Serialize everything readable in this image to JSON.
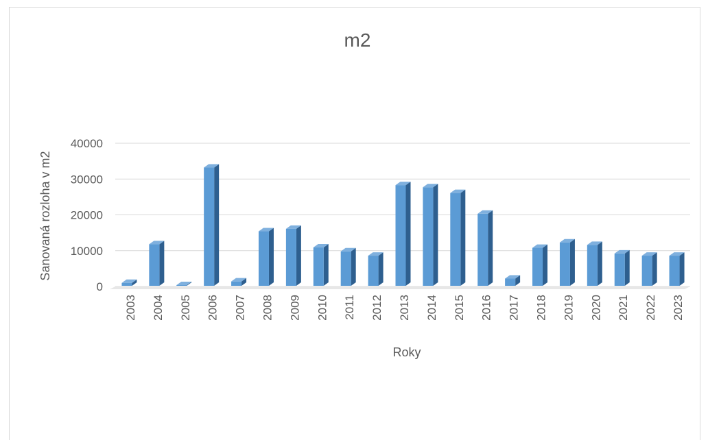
{
  "chart_data": {
    "type": "bar",
    "title": "m2",
    "xlabel": "Roky",
    "ylabel": "Sanovaná rozloha v m2",
    "categories": [
      "2003",
      "2004",
      "2005",
      "2006",
      "2007",
      "2008",
      "2009",
      "2010",
      "2011",
      "2012",
      "2013",
      "2014",
      "2015",
      "2016",
      "2017",
      "2018",
      "2019",
      "2020",
      "2021",
      "2022",
      "2023"
    ],
    "values": [
      1000,
      11800,
      100,
      33200,
      1400,
      15400,
      16100,
      10900,
      9800,
      8600,
      28300,
      27700,
      26100,
      20300,
      2200,
      10800,
      12300,
      11600,
      9200,
      8600,
      8600
    ],
    "ylim": [
      0,
      40000
    ],
    "yticks": [
      "0",
      "10000",
      "20000",
      "30000",
      "40000"
    ],
    "grid": true,
    "legend": "none",
    "colors": {
      "bar_front": "#5b9bd5",
      "bar_side": "#2e5f8f",
      "bar_top": "#7fb0de",
      "grid": "#d9d9d9"
    }
  }
}
